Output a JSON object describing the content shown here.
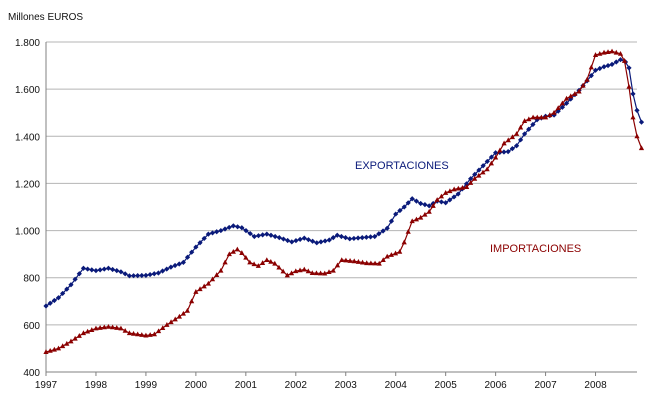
{
  "chart_data": {
    "type": "line",
    "title": "",
    "ylabel": "Millones EUROS",
    "xlabel": "",
    "ylim": [
      400,
      1800
    ],
    "xlim": [
      1997,
      2008.83
    ],
    "grid": true,
    "yticks": [
      400,
      600,
      800,
      1000,
      1200,
      1400,
      1600,
      1800
    ],
    "ytick_labels": [
      "400",
      "600",
      "800",
      "1.000",
      "1.200",
      "1.400",
      "1.600",
      "1.800"
    ],
    "xticks": [
      1997,
      1998,
      1999,
      2000,
      2001,
      2002,
      2003,
      2004,
      2005,
      2006,
      2007,
      2008
    ],
    "xtick_labels": [
      "1997",
      "1998",
      "1999",
      "2000",
      "2001",
      "2002",
      "2003",
      "2004",
      "2005",
      "2006",
      "2007",
      "2008"
    ],
    "series": [
      {
        "name": "EXPORTACIONES",
        "label": "EXPORTACIONES",
        "color": "#0a1a7a",
        "marker": "diamond",
        "points": [
          [
            1997.0,
            680
          ],
          [
            1997.25,
            715
          ],
          [
            1997.5,
            770
          ],
          [
            1997.75,
            840
          ],
          [
            1998.0,
            830
          ],
          [
            1998.25,
            840
          ],
          [
            1998.5,
            825
          ],
          [
            1998.67,
            808
          ],
          [
            1999.0,
            810
          ],
          [
            1999.25,
            820
          ],
          [
            1999.5,
            845
          ],
          [
            1999.75,
            865
          ],
          [
            2000.0,
            930
          ],
          [
            2000.25,
            985
          ],
          [
            2000.5,
            1000
          ],
          [
            2000.75,
            1020
          ],
          [
            2000.92,
            1012
          ],
          [
            2001.17,
            975
          ],
          [
            2001.42,
            985
          ],
          [
            2001.67,
            970
          ],
          [
            2001.92,
            952
          ],
          [
            2002.17,
            968
          ],
          [
            2002.42,
            948
          ],
          [
            2002.67,
            960
          ],
          [
            2002.83,
            980
          ],
          [
            2003.08,
            965
          ],
          [
            2003.33,
            970
          ],
          [
            2003.58,
            975
          ],
          [
            2003.83,
            1010
          ],
          [
            2004.0,
            1070
          ],
          [
            2004.17,
            1100
          ],
          [
            2004.33,
            1135
          ],
          [
            2004.5,
            1115
          ],
          [
            2004.67,
            1105
          ],
          [
            2004.83,
            1125
          ],
          [
            2005.0,
            1118
          ],
          [
            2005.25,
            1155
          ],
          [
            2005.5,
            1220
          ],
          [
            2005.75,
            1275
          ],
          [
            2006.0,
            1330
          ],
          [
            2006.25,
            1335
          ],
          [
            2006.42,
            1360
          ],
          [
            2006.58,
            1410
          ],
          [
            2006.83,
            1470
          ],
          [
            2007.0,
            1485
          ],
          [
            2007.17,
            1490
          ],
          [
            2007.42,
            1540
          ],
          [
            2007.67,
            1595
          ],
          [
            2007.83,
            1635
          ],
          [
            2008.0,
            1680
          ],
          [
            2008.17,
            1695
          ],
          [
            2008.33,
            1705
          ],
          [
            2008.5,
            1725
          ],
          [
            2008.6,
            1715
          ],
          [
            2008.67,
            1690
          ],
          [
            2008.75,
            1580
          ],
          [
            2008.83,
            1510
          ],
          [
            2008.92,
            1460
          ]
        ]
      },
      {
        "name": "IMPORTACIONES",
        "label": "IMPORTACIONES",
        "color": "#8b0000",
        "marker": "triangle",
        "points": [
          [
            1997.0,
            485
          ],
          [
            1997.25,
            500
          ],
          [
            1997.5,
            530
          ],
          [
            1997.75,
            565
          ],
          [
            1998.0,
            585
          ],
          [
            1998.25,
            592
          ],
          [
            1998.5,
            585
          ],
          [
            1998.67,
            565
          ],
          [
            1999.0,
            555
          ],
          [
            1999.17,
            560
          ],
          [
            1999.42,
            600
          ],
          [
            1999.67,
            635
          ],
          [
            1999.83,
            660
          ],
          [
            2000.0,
            740
          ],
          [
            2000.25,
            775
          ],
          [
            2000.5,
            830
          ],
          [
            2000.67,
            900
          ],
          [
            2000.83,
            920
          ],
          [
            2000.92,
            905
          ],
          [
            2001.08,
            865
          ],
          [
            2001.25,
            850
          ],
          [
            2001.42,
            875
          ],
          [
            2001.58,
            860
          ],
          [
            2001.83,
            810
          ],
          [
            2002.0,
            828
          ],
          [
            2002.17,
            835
          ],
          [
            2002.33,
            820
          ],
          [
            2002.58,
            818
          ],
          [
            2002.75,
            830
          ],
          [
            2002.92,
            875
          ],
          [
            2003.17,
            870
          ],
          [
            2003.42,
            862
          ],
          [
            2003.67,
            860
          ],
          [
            2003.83,
            890
          ],
          [
            2004.08,
            910
          ],
          [
            2004.17,
            950
          ],
          [
            2004.33,
            1040
          ],
          [
            2004.5,
            1055
          ],
          [
            2004.67,
            1080
          ],
          [
            2004.83,
            1130
          ],
          [
            2005.0,
            1160
          ],
          [
            2005.17,
            1175
          ],
          [
            2005.42,
            1185
          ],
          [
            2005.58,
            1220
          ],
          [
            2005.83,
            1260
          ],
          [
            2006.0,
            1310
          ],
          [
            2006.17,
            1370
          ],
          [
            2006.42,
            1410
          ],
          [
            2006.58,
            1465
          ],
          [
            2006.75,
            1480
          ],
          [
            2007.0,
            1480
          ],
          [
            2007.17,
            1500
          ],
          [
            2007.42,
            1560
          ],
          [
            2007.67,
            1590
          ],
          [
            2007.83,
            1640
          ],
          [
            2008.0,
            1745
          ],
          [
            2008.17,
            1755
          ],
          [
            2008.33,
            1760
          ],
          [
            2008.5,
            1750
          ],
          [
            2008.58,
            1720
          ],
          [
            2008.67,
            1610
          ],
          [
            2008.75,
            1480
          ],
          [
            2008.83,
            1400
          ],
          [
            2008.92,
            1350
          ]
        ]
      }
    ]
  }
}
